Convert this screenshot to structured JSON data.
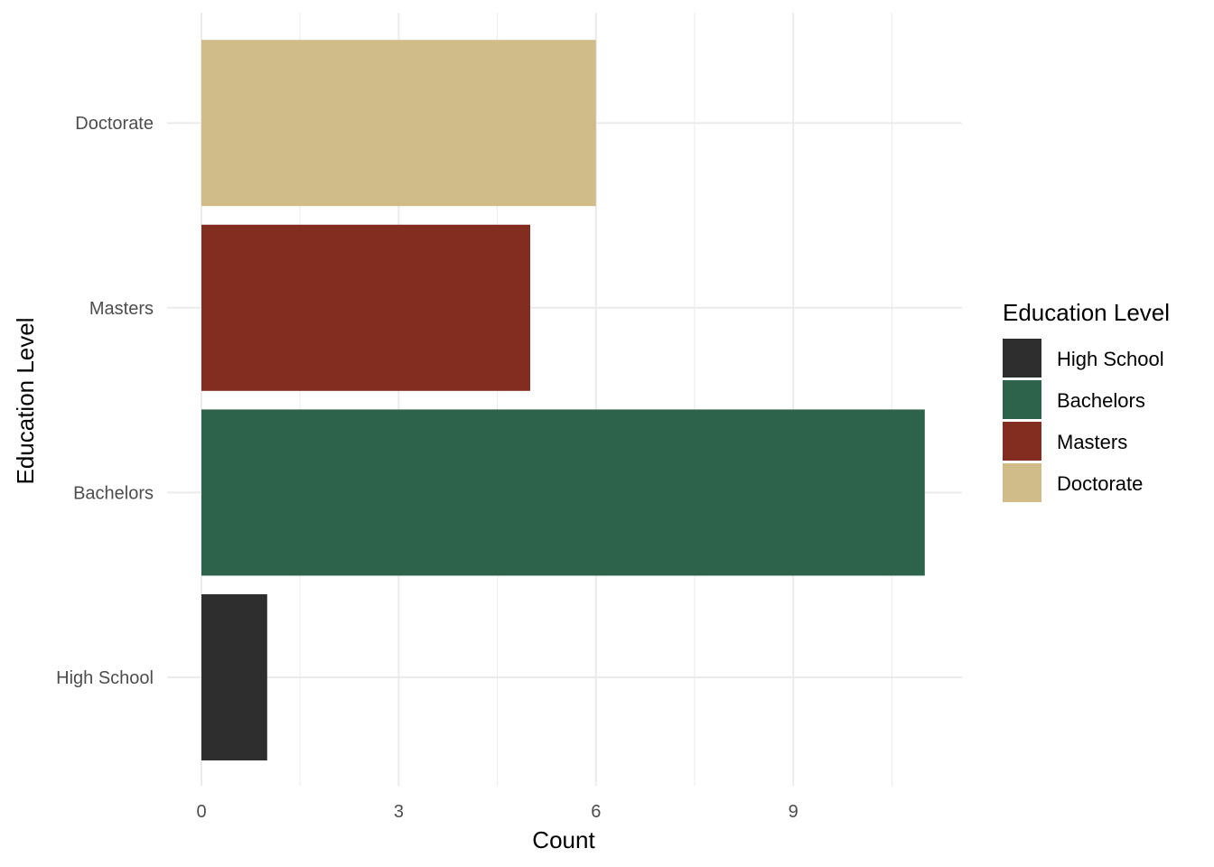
{
  "chart_data": {
    "type": "bar",
    "orientation": "horizontal",
    "categories": [
      "High School",
      "Bachelors",
      "Masters",
      "Doctorate"
    ],
    "values": [
      1,
      11,
      5,
      6
    ],
    "colors": [
      "#2e2e2e",
      "#2d634a",
      "#832c20",
      "#cfbc88"
    ],
    "xlabel": "Count",
    "ylabel": "Education Level",
    "x_ticks": [
      0,
      3,
      6,
      9
    ],
    "xlim": [
      0,
      11.55
    ],
    "grid": true,
    "legend": {
      "title": "Education Level",
      "position": "right",
      "entries": [
        "High School",
        "Bachelors",
        "Masters",
        "Doctorate"
      ]
    }
  }
}
